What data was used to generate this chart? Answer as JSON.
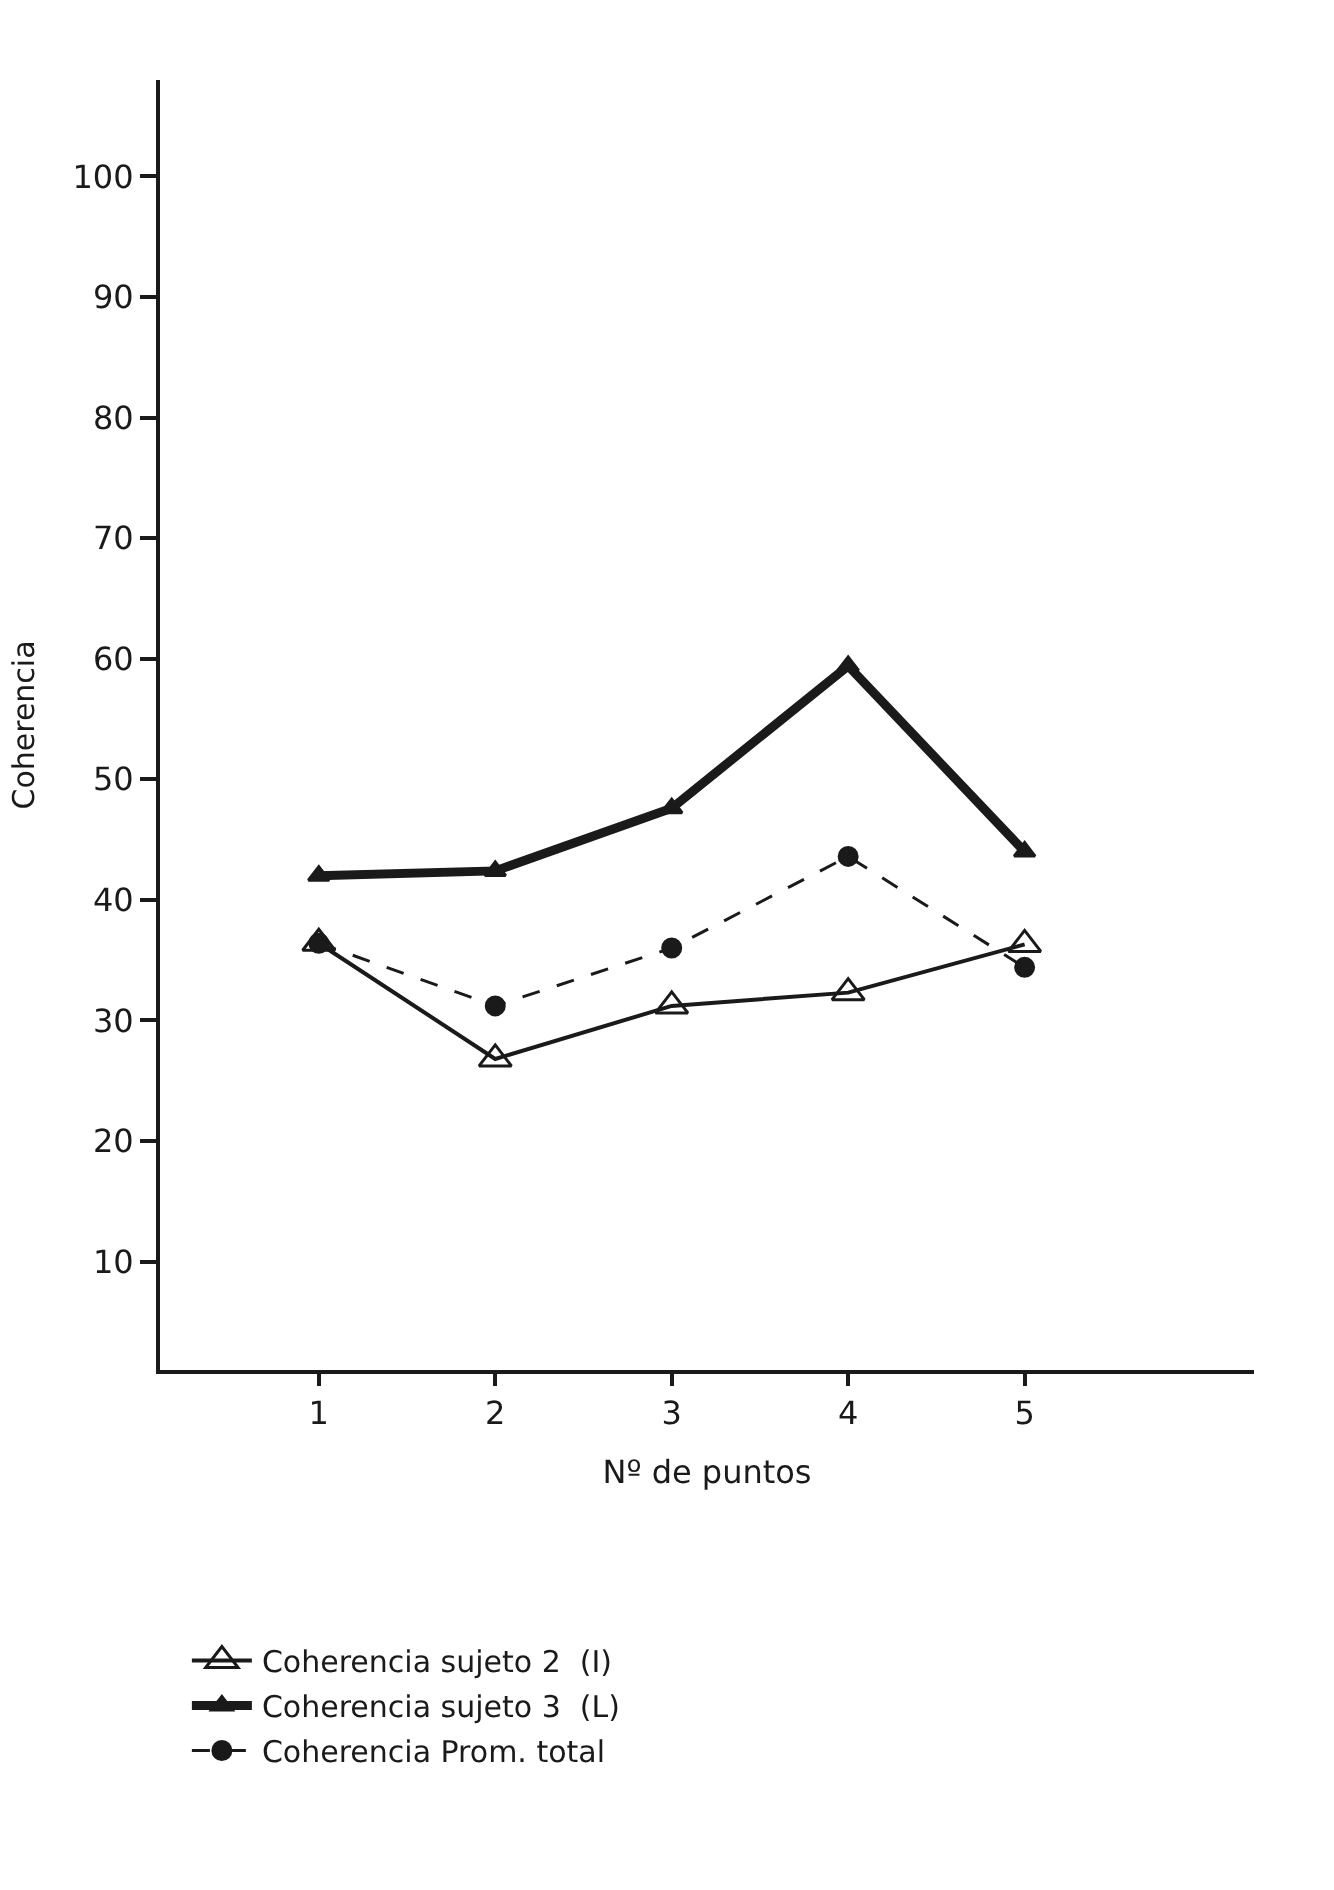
{
  "chart_data": {
    "type": "line",
    "xlabel": "Nº de puntos",
    "ylabel": "Coherencia",
    "categories": [
      "1",
      "2",
      "3",
      "4",
      "5"
    ],
    "series": [
      {
        "name": "Coherencia sujeto 2  (I)",
        "color": "#1a1a1a",
        "values": [
          36.4,
          26.8,
          31.2,
          32.3,
          36.3
        ],
        "marker": "triangle",
        "line_style": "solid"
      },
      {
        "name": "Coherencia sujeto 3  (L)",
        "color": "#1a1a1a",
        "values": [
          42,
          42.4,
          47.6,
          59.4,
          44
        ],
        "marker": "triangle",
        "line_style": "solid"
      },
      {
        "name": "Coherencia Prom. total",
        "color": "#1a1a1a",
        "values": [
          36.4,
          31.2,
          36,
          43.6,
          34.4
        ],
        "marker": "circle",
        "line_style": "dashed"
      }
    ],
    "ylim": [
      1,
      108
    ],
    "yticks": [
      10,
      20,
      30,
      40,
      50,
      60,
      70,
      80,
      90,
      100
    ],
    "legend": "bottom"
  }
}
